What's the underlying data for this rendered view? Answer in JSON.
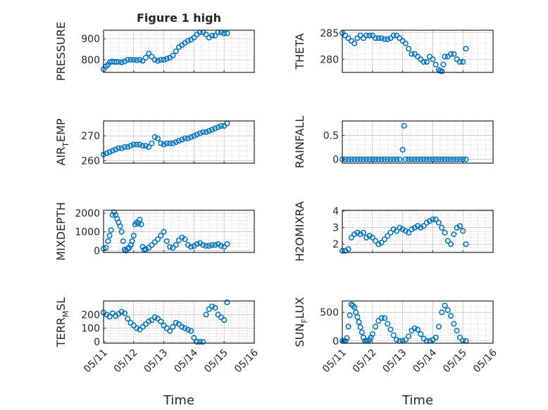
{
  "figure": {
    "title": "Figure 1 high",
    "xlabel": "Time"
  },
  "colors": {
    "marker": "#0072BD",
    "axis": "#262626",
    "grid": "#b0b0b0"
  },
  "xticks": [
    "05/11",
    "05/12",
    "05/13",
    "05/14",
    "05/15",
    "05/16"
  ],
  "chart_data": [
    {
      "type": "scatter",
      "ylabel_main": "PRESSURE",
      "ylabel_sub": "",
      "ylabel_tail": "",
      "xlim": [
        0,
        5
      ],
      "ylim": [
        740,
        940
      ],
      "yticks": [
        800,
        900
      ],
      "x": [
        0.0,
        0.07,
        0.14,
        0.21,
        0.28,
        0.35,
        0.42,
        0.5,
        0.6,
        0.7,
        0.8,
        0.9,
        1.0,
        1.1,
        1.2,
        1.3,
        1.4,
        1.5,
        1.6,
        1.7,
        1.8,
        1.9,
        2.0,
        2.1,
        2.2,
        2.3,
        2.4,
        2.5,
        2.6,
        2.7,
        2.8,
        2.9,
        3.0,
        3.1,
        3.2,
        3.3,
        3.4,
        3.5,
        3.6,
        3.7,
        3.8,
        3.9,
        4.0,
        4.1
      ],
      "y": [
        755,
        768,
        775,
        788,
        792,
        790,
        790,
        790,
        788,
        792,
        800,
        800,
        800,
        798,
        800,
        795,
        810,
        830,
        815,
        800,
        795,
        800,
        800,
        805,
        810,
        820,
        840,
        860,
        870,
        880,
        890,
        895,
        905,
        920,
        930,
        930,
        920,
        905,
        915,
        915,
        930,
        930,
        925,
        925
      ]
    },
    {
      "type": "scatter",
      "ylabel_main": "THETA",
      "ylabel_sub": "",
      "ylabel_tail": "",
      "xlim": [
        0,
        5
      ],
      "ylim": [
        277.5,
        285.5
      ],
      "yticks": [
        280,
        285
      ],
      "x": [
        0.0,
        0.1,
        0.2,
        0.3,
        0.4,
        0.5,
        0.6,
        0.7,
        0.8,
        0.9,
        1.0,
        1.1,
        1.2,
        1.3,
        1.4,
        1.5,
        1.6,
        1.7,
        1.8,
        1.9,
        2.0,
        2.1,
        2.2,
        2.3,
        2.4,
        2.5,
        2.6,
        2.7,
        2.8,
        2.9,
        3.0,
        3.1,
        3.2,
        3.25,
        3.3,
        3.35,
        3.4,
        3.5,
        3.6,
        3.7,
        3.8,
        3.9,
        4.0,
        4.1
      ],
      "y": [
        285,
        284.5,
        284,
        283.5,
        283,
        284,
        284.5,
        284,
        284.5,
        284.5,
        284.5,
        284,
        284,
        284,
        283.8,
        283.8,
        284,
        284.5,
        284.5,
        284,
        283.5,
        283,
        282,
        281,
        281,
        280.5,
        280,
        279.5,
        279.5,
        280.5,
        280,
        279,
        278,
        277.8,
        277.7,
        279,
        280.5,
        280.5,
        281,
        281,
        280,
        279.5,
        279.5,
        282
      ]
    },
    {
      "type": "scatter",
      "ylabel_main": "AIR",
      "ylabel_sub": "T",
      "ylabel_tail": "EMP",
      "xlim": [
        0,
        5
      ],
      "ylim": [
        259,
        276
      ],
      "yticks": [
        260,
        270
      ],
      "x": [
        0.0,
        0.1,
        0.2,
        0.3,
        0.4,
        0.5,
        0.6,
        0.7,
        0.8,
        0.9,
        1.0,
        1.1,
        1.2,
        1.3,
        1.4,
        1.5,
        1.6,
        1.7,
        1.8,
        1.9,
        2.0,
        2.1,
        2.2,
        2.3,
        2.4,
        2.5,
        2.6,
        2.7,
        2.8,
        2.9,
        3.0,
        3.1,
        3.2,
        3.3,
        3.4,
        3.5,
        3.6,
        3.7,
        3.8,
        3.9,
        4.0,
        4.1
      ],
      "y": [
        262.5,
        263,
        263.5,
        264,
        264.5,
        265,
        265,
        265.5,
        265.5,
        266,
        266.5,
        266.5,
        266.5,
        266,
        266,
        265.5,
        267,
        269.5,
        269,
        267,
        266.5,
        267,
        267,
        267,
        267.5,
        268,
        268.5,
        269,
        269,
        269.5,
        270,
        270.5,
        271,
        271.5,
        271.5,
        272,
        272.5,
        273,
        273.5,
        274,
        274,
        275
      ]
    },
    {
      "type": "scatter",
      "ylabel_main": "RAINFALL",
      "ylabel_sub": "",
      "ylabel_tail": "",
      "xlim": [
        0,
        5
      ],
      "ylim": [
        -0.08,
        0.8
      ],
      "yticks": [
        0,
        0.5
      ],
      "x": [
        0.0,
        0.1,
        0.2,
        0.3,
        0.4,
        0.5,
        0.6,
        0.7,
        0.8,
        0.9,
        1.0,
        1.1,
        1.2,
        1.3,
        1.4,
        1.5,
        1.6,
        1.7,
        1.8,
        1.9,
        2.0,
        2.05,
        2.1,
        2.2,
        2.3,
        2.4,
        2.5,
        2.6,
        2.7,
        2.8,
        2.9,
        3.0,
        3.1,
        3.2,
        3.3,
        3.4,
        3.5,
        3.6,
        3.7,
        3.8,
        3.9,
        4.0,
        4.1
      ],
      "y": [
        0,
        0,
        0,
        0,
        0,
        0,
        0,
        0,
        0,
        0,
        0,
        0,
        0,
        0,
        0,
        0,
        0,
        0,
        0,
        0,
        0.2,
        0.7,
        0,
        0,
        0,
        0,
        0,
        0,
        0,
        0,
        0,
        0,
        0,
        0,
        0,
        0,
        0,
        0,
        0,
        0,
        0,
        0,
        0
      ]
    },
    {
      "type": "scatter",
      "ylabel_main": "MIXDEPTH",
      "ylabel_sub": "",
      "ylabel_tail": "",
      "xlim": [
        0,
        5
      ],
      "ylim": [
        -100,
        2150
      ],
      "yticks": [
        0,
        1000,
        2000
      ],
      "x": [
        0.0,
        0.08,
        0.15,
        0.2,
        0.25,
        0.3,
        0.35,
        0.4,
        0.45,
        0.5,
        0.55,
        0.6,
        0.65,
        0.7,
        0.75,
        0.8,
        0.85,
        0.9,
        0.95,
        1.0,
        1.05,
        1.1,
        1.15,
        1.2,
        1.25,
        1.3,
        1.35,
        1.4,
        1.5,
        1.6,
        1.7,
        1.8,
        1.9,
        2.0,
        2.1,
        2.2,
        2.3,
        2.4,
        2.5,
        2.6,
        2.7,
        2.8,
        2.9,
        3.0,
        3.1,
        3.2,
        3.3,
        3.4,
        3.5,
        3.6,
        3.7,
        3.8,
        3.9,
        4.0,
        4.1
      ],
      "y": [
        100,
        150,
        500,
        800,
        1100,
        1900,
        2050,
        1900,
        1700,
        1500,
        1300,
        1000,
        500,
        50,
        0,
        100,
        150,
        300,
        500,
        800,
        1400,
        1500,
        1450,
        1650,
        1400,
        200,
        50,
        80,
        150,
        300,
        450,
        600,
        800,
        1000,
        500,
        200,
        150,
        300,
        550,
        700,
        600,
        300,
        200,
        250,
        350,
        400,
        300,
        250,
        250,
        300,
        300,
        350,
        250,
        200,
        350
      ]
    },
    {
      "type": "scatter",
      "ylabel_main": "H2OMIXRA",
      "ylabel_sub": "",
      "ylabel_tail": "",
      "xlim": [
        0,
        5
      ],
      "ylim": [
        1.5,
        4.05
      ],
      "yticks": [
        2,
        3,
        4
      ],
      "x": [
        0.0,
        0.1,
        0.2,
        0.3,
        0.4,
        0.5,
        0.6,
        0.7,
        0.8,
        0.9,
        1.0,
        1.1,
        1.2,
        1.3,
        1.4,
        1.5,
        1.6,
        1.7,
        1.8,
        1.9,
        2.0,
        2.1,
        2.2,
        2.3,
        2.4,
        2.5,
        2.6,
        2.7,
        2.8,
        2.9,
        3.0,
        3.1,
        3.2,
        3.3,
        3.4,
        3.5,
        3.6,
        3.7,
        3.8,
        3.9,
        4.0,
        4.1
      ],
      "y": [
        1.6,
        1.6,
        1.7,
        2.4,
        2.6,
        2.7,
        2.6,
        2.7,
        2.4,
        2.5,
        2.4,
        2.2,
        2.0,
        2.1,
        2.3,
        2.5,
        2.7,
        2.9,
        2.8,
        3.0,
        2.9,
        2.8,
        2.7,
        2.9,
        3.0,
        3.1,
        3.0,
        3.1,
        3.3,
        3.4,
        3.5,
        3.5,
        3.3,
        3.0,
        2.7,
        2.2,
        2.0,
        2.6,
        3.0,
        3.1,
        2.8,
        2.0
      ]
    },
    {
      "type": "scatter",
      "ylabel_main": "TERR",
      "ylabel_sub": "M",
      "ylabel_tail": "SL",
      "xlim": [
        0,
        5
      ],
      "ylim": [
        -10,
        300
      ],
      "yticks": [
        0,
        100,
        200
      ],
      "x": [
        0.0,
        0.1,
        0.2,
        0.3,
        0.4,
        0.5,
        0.6,
        0.7,
        0.8,
        0.9,
        1.0,
        1.1,
        1.2,
        1.3,
        1.4,
        1.5,
        1.6,
        1.7,
        1.8,
        1.9,
        2.0,
        2.1,
        2.2,
        2.3,
        2.4,
        2.5,
        2.6,
        2.7,
        2.8,
        2.9,
        3.0,
        3.1,
        3.2,
        3.3,
        3.4,
        3.5,
        3.6,
        3.7,
        3.8,
        3.9,
        4.0,
        4.1
      ],
      "y": [
        215,
        200,
        185,
        210,
        190,
        205,
        220,
        210,
        170,
        140,
        120,
        100,
        90,
        110,
        130,
        150,
        160,
        180,
        170,
        150,
        120,
        100,
        80,
        110,
        140,
        130,
        110,
        100,
        90,
        80,
        30,
        0,
        0,
        0,
        200,
        240,
        260,
        250,
        200,
        180,
        160,
        290
      ]
    },
    {
      "type": "scatter",
      "ylabel_main": "SUN",
      "ylabel_sub": "F",
      "ylabel_tail": "LUX",
      "xlim": [
        0,
        5
      ],
      "ylim": [
        -40,
        700
      ],
      "yticks": [
        0,
        500
      ],
      "x": [
        0.0,
        0.05,
        0.1,
        0.15,
        0.2,
        0.25,
        0.3,
        0.35,
        0.4,
        0.45,
        0.5,
        0.55,
        0.6,
        0.65,
        0.7,
        0.75,
        0.8,
        0.85,
        0.9,
        0.95,
        1.0,
        1.1,
        1.2,
        1.3,
        1.4,
        1.5,
        1.6,
        1.7,
        1.8,
        1.9,
        2.0,
        2.1,
        2.2,
        2.3,
        2.4,
        2.5,
        2.6,
        2.7,
        2.8,
        2.9,
        3.0,
        3.1,
        3.2,
        3.3,
        3.4,
        3.5,
        3.6,
        3.7,
        3.8,
        3.9,
        4.0,
        4.1
      ],
      "y": [
        0,
        0,
        0,
        50,
        250,
        450,
        640,
        620,
        590,
        500,
        420,
        330,
        240,
        150,
        60,
        0,
        0,
        0,
        20,
        60,
        120,
        250,
        350,
        400,
        400,
        300,
        200,
        100,
        20,
        0,
        0,
        20,
        80,
        180,
        220,
        200,
        120,
        40,
        0,
        0,
        20,
        60,
        250,
        500,
        620,
        540,
        440,
        300,
        180,
        60,
        0,
        0
      ]
    }
  ]
}
